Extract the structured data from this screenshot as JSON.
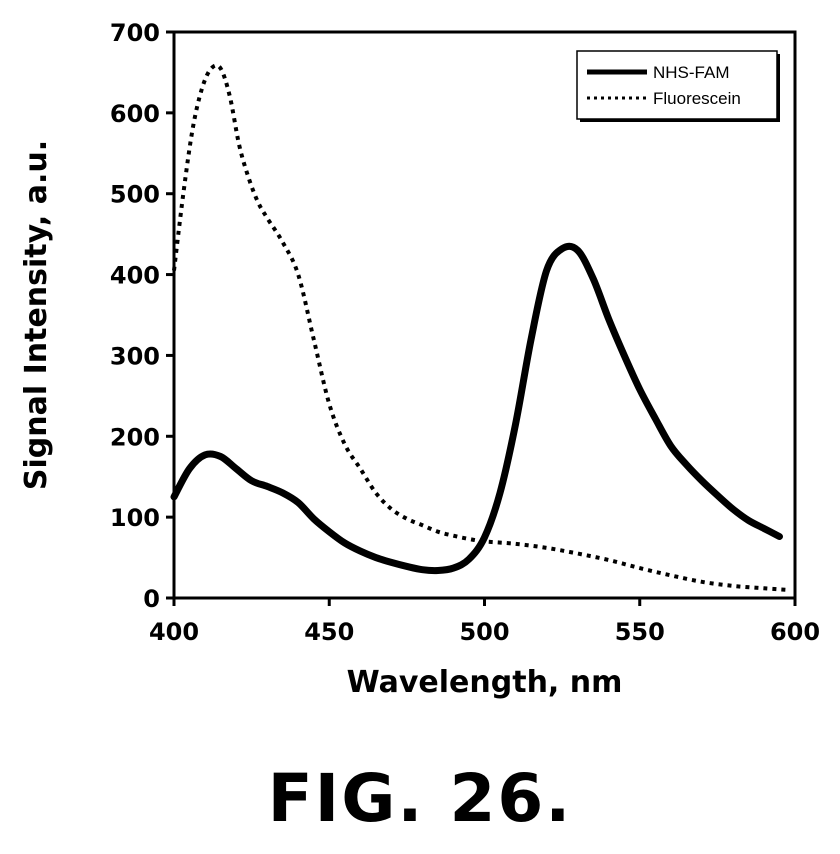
{
  "figure_caption": "FIG. 26.",
  "chart_data": {
    "type": "line",
    "xlabel": "Wavelength, nm",
    "ylabel": "Signal Intensity, a.u.",
    "xlim": [
      400,
      600
    ],
    "ylim": [
      0,
      700
    ],
    "xticks": [
      400,
      450,
      500,
      550,
      600
    ],
    "yticks": [
      0,
      100,
      200,
      300,
      400,
      500,
      600,
      700
    ],
    "grid": false,
    "legend_position": "top-right",
    "series": [
      {
        "name": "NHS-FAM",
        "style": "solid",
        "color": "#000000",
        "x": [
          400,
          405,
          410,
          415,
          420,
          425,
          430,
          435,
          440,
          445,
          450,
          455,
          460,
          465,
          470,
          475,
          480,
          485,
          490,
          495,
          500,
          505,
          510,
          515,
          520,
          525,
          530,
          535,
          540,
          545,
          550,
          555,
          560,
          565,
          570,
          575,
          580,
          585,
          590,
          595
        ],
        "y": [
          125,
          160,
          177,
          175,
          160,
          145,
          138,
          130,
          118,
          98,
          82,
          68,
          58,
          50,
          44,
          39,
          35,
          34,
          37,
          48,
          75,
          130,
          215,
          320,
          405,
          432,
          430,
          395,
          345,
          300,
          258,
          222,
          188,
          165,
          145,
          127,
          110,
          96,
          86,
          76
        ]
      },
      {
        "name": "Fluorescein",
        "style": "dotted",
        "color": "#000000",
        "x": [
          400,
          403,
          406,
          409,
          412,
          415,
          418,
          421,
          424,
          427,
          430,
          435,
          440,
          445,
          450,
          455,
          460,
          465,
          470,
          475,
          480,
          485,
          490,
          495,
          500,
          510,
          520,
          530,
          540,
          550,
          560,
          570,
          580,
          590,
          598
        ],
        "y": [
          405,
          500,
          580,
          630,
          655,
          655,
          620,
          560,
          520,
          490,
          470,
          440,
          400,
          320,
          240,
          190,
          160,
          130,
          110,
          98,
          90,
          82,
          77,
          73,
          70,
          67,
          62,
          55,
          47,
          37,
          28,
          20,
          15,
          12,
          10
        ]
      }
    ]
  }
}
